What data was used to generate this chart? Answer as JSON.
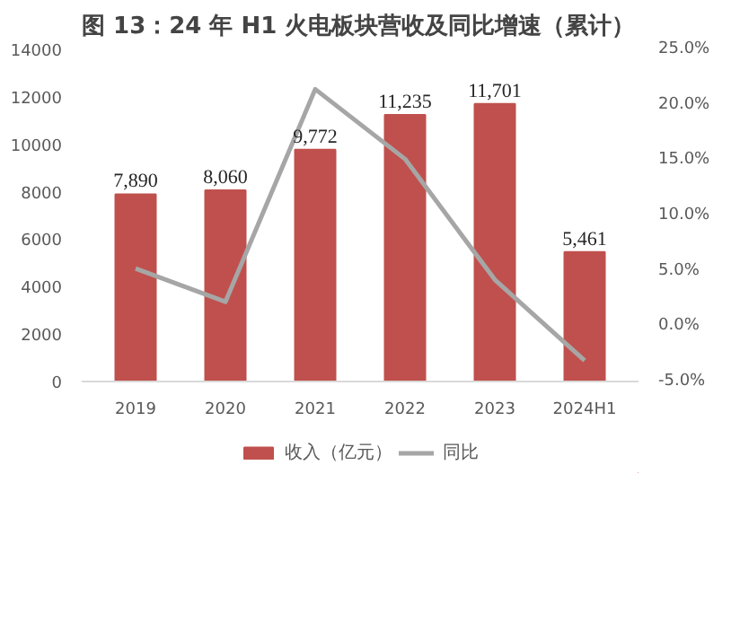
{
  "chart_data": {
    "type": "bar",
    "title": "图 13：24 年 H1 火电板块营收及同比增速（累计）",
    "categories": [
      "2019",
      "2020",
      "2021",
      "2022",
      "2023",
      "2024H1"
    ],
    "series": [
      {
        "name": "收入（亿元）",
        "color": "#c0504d",
        "values": [
          7890,
          8060,
          9772,
          11235,
          11701,
          5461
        ],
        "value_labels": [
          "7,890",
          "8,060",
          "9,772",
          "11,235",
          "11,701",
          "5,461"
        ]
      },
      {
        "name": "同比",
        "type": "line",
        "axis": "y2",
        "color": "#a6a6a6",
        "values": [
          5.2,
          2.2,
          21.4,
          15.1,
          4.2,
          -3.1
        ]
      }
    ],
    "ylim": [
      0,
      14000
    ],
    "yticks": [
      0,
      2000,
      4000,
      6000,
      8000,
      10000,
      12000,
      14000
    ],
    "y2lim": [
      -5,
      25
    ],
    "y2ticks": [
      {
        "value": -5,
        "label": "-5.0%"
      },
      {
        "value": 0,
        "label": "0.0%"
      },
      {
        "value": 5,
        "label": "5.0%"
      },
      {
        "value": 10,
        "label": "10.0%"
      },
      {
        "value": 15,
        "label": "15.0%"
      },
      {
        "value": 20,
        "label": "20.0%"
      },
      {
        "value": 25,
        "label": "25.0%"
      }
    ],
    "grid": false,
    "legend": "bottom",
    "marker": "none",
    "line_style": "solid"
  }
}
